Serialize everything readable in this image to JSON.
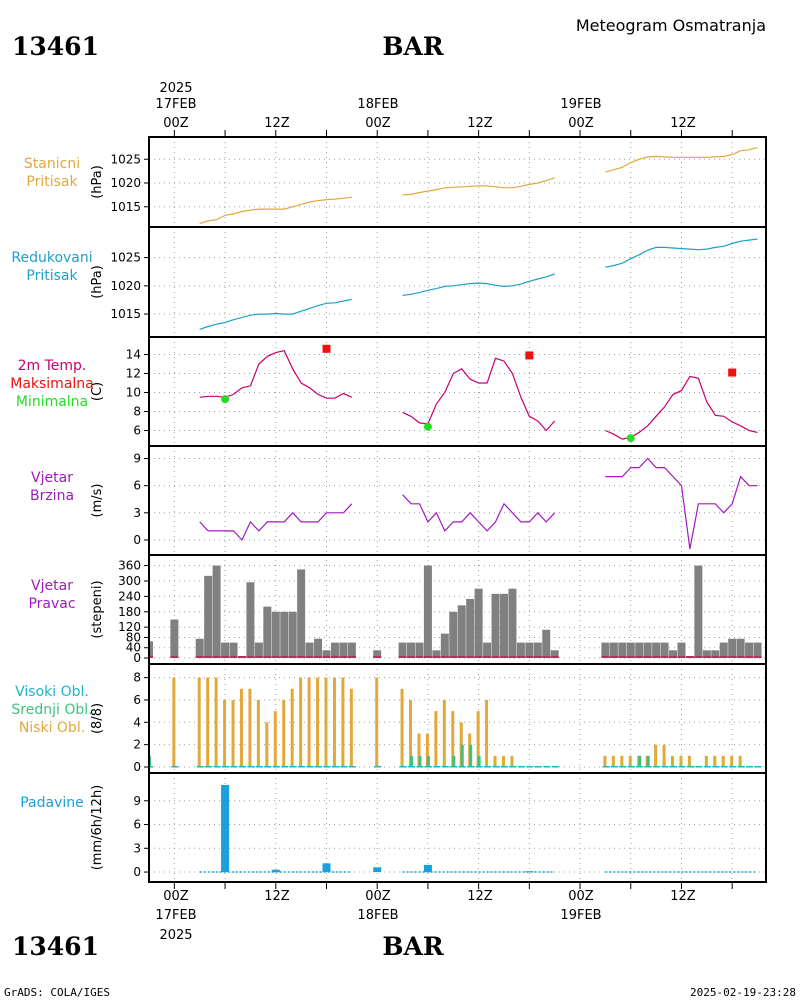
{
  "header": {
    "station_id": "13461",
    "station_name": "BAR",
    "title": "Meteogram Osmatranja"
  },
  "footer": {
    "station_id": "13461",
    "station_name": "BAR",
    "credit": "GrADS: COLA/IGES",
    "timestamp": "2025-02-19-23:28"
  },
  "time_axis": {
    "year": "2025",
    "day_labels": [
      "17FEB",
      "18FEB",
      "19FEB"
    ],
    "hour_labels": [
      "00Z",
      "12Z",
      "00Z",
      "12Z",
      "00Z",
      "12Z"
    ],
    "range_hours": [
      -3,
      70
    ],
    "grid_hours": [
      0,
      6,
      12,
      18,
      24,
      30,
      36,
      42,
      48,
      54,
      60,
      66
    ]
  },
  "colors": {
    "station_pressure": "#e2a83c",
    "reduced_pressure": "#1fa0c8",
    "temperature": "#c8006e",
    "tmax": "#ee1111",
    "tmin": "#22dd22",
    "wind_speed": "#a01bbf",
    "wind_dir": "#808080",
    "wind_dir_base": "#b03060",
    "high_cloud": "#1fb5c8",
    "mid_cloud": "#40c080",
    "low_cloud": "#e2a83c",
    "precip": "#1aa0dc",
    "grid": "#a0a0a0"
  },
  "chart_data": [
    {
      "type": "line",
      "panel": "station_pressure",
      "label_lines": [
        "Stanicni",
        "Pritisak"
      ],
      "ylabel": "(hPa)",
      "ylim": [
        1012,
        1028
      ],
      "yticks": [
        1015,
        1020,
        1025
      ],
      "series": [
        {
          "x": [
            3,
            4,
            5,
            6,
            7,
            8,
            9,
            10,
            11,
            12,
            13,
            14,
            15,
            16,
            17,
            18,
            19,
            20,
            21
          ],
          "values": [
            1011.5,
            1012,
            1012.3,
            1013.2,
            1013.5,
            1014,
            1014.3,
            1014.5,
            1014.5,
            1014.5,
            1014.5,
            1015,
            1015.5,
            1016,
            1016.3,
            1016.5,
            1016.6,
            1016.8,
            1017
          ]
        },
        {
          "x": [
            27,
            28,
            29,
            30,
            31,
            32,
            33,
            34,
            35,
            36,
            37,
            38,
            39,
            40,
            41,
            42,
            43,
            44,
            45
          ],
          "values": [
            1017.5,
            1017.6,
            1018,
            1018.3,
            1018.6,
            1019,
            1019.1,
            1019.2,
            1019.3,
            1019.4,
            1019.4,
            1019.2,
            1019,
            1019,
            1019.3,
            1019.7,
            1020,
            1020.5,
            1021.1
          ]
        },
        {
          "x": [
            51,
            52,
            53,
            54,
            55,
            56,
            57,
            58,
            59,
            60,
            61,
            62,
            63,
            64,
            65,
            66,
            67,
            68,
            69
          ],
          "values": [
            1022.3,
            1022.8,
            1023.3,
            1024.3,
            1025,
            1025.5,
            1025.6,
            1025.5,
            1025.4,
            1025.4,
            1025.4,
            1025.4,
            1025.4,
            1025.5,
            1025.6,
            1026,
            1026.8,
            1027,
            1027.5
          ]
        }
      ]
    },
    {
      "type": "line",
      "panel": "reduced_pressure",
      "label_lines": [
        "Redukovani",
        "Pritisak"
      ],
      "ylabel": "(hPa)",
      "ylim": [
        1012,
        1029
      ],
      "yticks": [
        1015,
        1020,
        1025
      ],
      "series": [
        {
          "x": [
            3,
            4,
            5,
            6,
            7,
            8,
            9,
            10,
            11,
            12,
            13,
            14,
            15,
            16,
            17,
            18,
            19,
            20,
            21
          ],
          "values": [
            1012.3,
            1012.8,
            1013.2,
            1013.5,
            1014,
            1014.4,
            1014.8,
            1015,
            1015,
            1015.1,
            1015,
            1015,
            1015.5,
            1016,
            1016.5,
            1016.9,
            1017,
            1017.3,
            1017.6
          ]
        },
        {
          "x": [
            27,
            28,
            29,
            30,
            31,
            32,
            33,
            34,
            35,
            36,
            37,
            38,
            39,
            40,
            41,
            42,
            43,
            44,
            45
          ],
          "values": [
            1018.3,
            1018.5,
            1018.8,
            1019.2,
            1019.5,
            1019.9,
            1020,
            1020.2,
            1020.4,
            1020.5,
            1020.4,
            1020.1,
            1019.9,
            1020,
            1020.3,
            1020.8,
            1021.2,
            1021.6,
            1022.1
          ]
        },
        {
          "x": [
            51,
            52,
            53,
            54,
            55,
            56,
            57,
            58,
            59,
            60,
            61,
            62,
            63,
            64,
            65,
            66,
            67,
            68,
            69
          ],
          "values": [
            1023.3,
            1023.6,
            1024,
            1024.8,
            1025.5,
            1026.3,
            1026.8,
            1026.8,
            1026.7,
            1026.6,
            1026.5,
            1026.4,
            1026.5,
            1026.8,
            1027,
            1027.5,
            1027.9,
            1028.1,
            1028.3
          ]
        }
      ]
    },
    {
      "type": "line",
      "panel": "temperature",
      "label_lines": [
        "2m Temp.",
        "Maksimalna",
        "Minimalna"
      ],
      "ylabel": "(C)",
      "ylim": [
        5,
        15
      ],
      "yticks": [
        6,
        8,
        10,
        12,
        14
      ],
      "series": [
        {
          "name": "2m Temp.",
          "x": [
            3,
            4,
            5,
            6,
            7,
            8,
            9,
            10,
            11,
            12,
            13,
            14,
            15,
            16,
            17,
            18,
            19,
            20,
            21
          ],
          "values": [
            9.5,
            9.6,
            9.6,
            9.5,
            9.8,
            10.5,
            10.7,
            13,
            13.8,
            14.2,
            14.4,
            12.5,
            11,
            10.5,
            9.8,
            9.4,
            9.4,
            9.9,
            9.5
          ]
        },
        {
          "name": "2m Temp.",
          "x": [
            27,
            28,
            29,
            30,
            31,
            32,
            33,
            34,
            35,
            36,
            37,
            38,
            39,
            40,
            41,
            42,
            43,
            44,
            45
          ],
          "values": [
            7.9,
            7.5,
            6.8,
            6.7,
            8.8,
            10,
            12,
            12.5,
            11.4,
            11,
            11,
            13.6,
            13.3,
            12,
            9.5,
            7.5,
            7,
            6,
            7
          ]
        },
        {
          "name": "2m Temp.",
          "x": [
            51,
            52,
            53,
            54,
            55,
            56,
            57,
            58,
            59,
            60,
            61,
            62,
            63,
            64,
            65,
            66,
            67,
            68,
            69
          ],
          "values": [
            6,
            5.6,
            5.1,
            5.3,
            5.8,
            6.5,
            7.5,
            8.5,
            9.8,
            10.2,
            11.7,
            11.5,
            9,
            7.6,
            7.5,
            6.9,
            6.5,
            6,
            5.8
          ]
        },
        {
          "name": "Maksimalna",
          "x": [
            18,
            42,
            66
          ],
          "values": [
            14.6,
            13.9,
            12.1
          ]
        },
        {
          "name": "Minimalna",
          "x": [
            6,
            30,
            54
          ],
          "values": [
            9.3,
            6.4,
            5.2
          ]
        }
      ]
    },
    {
      "type": "line",
      "panel": "wind_speed",
      "label_lines": [
        "Vjetar",
        "Brzina"
      ],
      "ylabel": "(m/s)",
      "ylim": [
        -1,
        9.5
      ],
      "yticks": [
        0,
        3,
        6,
        9
      ],
      "series": [
        {
          "x": [
            3,
            4,
            5,
            6,
            7,
            8,
            9,
            10,
            11,
            12,
            13,
            14,
            15,
            16,
            17,
            18,
            19,
            20,
            21
          ],
          "values": [
            2,
            1,
            1,
            1,
            1,
            0,
            2,
            1,
            2,
            2,
            2,
            3,
            2,
            2,
            2,
            3,
            3,
            3,
            4
          ]
        },
        {
          "x": [
            27,
            28,
            29,
            30,
            31,
            32,
            33,
            34,
            35,
            36,
            37,
            38,
            39,
            40,
            41,
            42,
            43,
            44,
            45
          ],
          "values": [
            5,
            4,
            4,
            2,
            3,
            1,
            2,
            2,
            3,
            2,
            1,
            2,
            4,
            3,
            2,
            2,
            3,
            2,
            3
          ]
        },
        {
          "x": [
            51,
            52,
            53,
            54,
            55,
            56,
            57,
            58,
            59,
            60,
            61,
            62,
            63,
            64,
            65,
            66,
            67,
            68,
            69
          ],
          "values": [
            7,
            7,
            7,
            8,
            8,
            9,
            8,
            8,
            7,
            6,
            -1,
            4,
            4,
            4,
            3,
            4,
            7,
            6,
            6
          ]
        }
      ]
    },
    {
      "type": "bar",
      "panel": "wind_direction",
      "label_lines": [
        "Vjetar",
        "Pravac"
      ],
      "ylabel": "(stepeni)",
      "ylim": [
        0,
        370
      ],
      "yticks": [
        0,
        40,
        80,
        120,
        180,
        240,
        300,
        360
      ],
      "ytick_labels": [
        "0",
        "40",
        "80",
        "120",
        "180",
        "240",
        "300",
        "360"
      ],
      "x": [
        -3,
        0,
        3,
        4,
        5,
        6,
        7,
        8,
        9,
        10,
        11,
        12,
        13,
        14,
        15,
        16,
        17,
        18,
        19,
        20,
        21,
        24,
        27,
        28,
        29,
        30,
        31,
        32,
        33,
        34,
        35,
        36,
        37,
        38,
        39,
        40,
        41,
        42,
        43,
        44,
        45,
        51,
        52,
        53,
        54,
        55,
        56,
        57,
        58,
        59,
        60,
        61,
        62,
        63,
        64,
        65,
        66,
        67,
        68,
        69
      ],
      "values": [
        65,
        150,
        75,
        320,
        360,
        60,
        60,
        0,
        295,
        60,
        200,
        180,
        180,
        180,
        345,
        60,
        75,
        30,
        60,
        60,
        60,
        30,
        60,
        60,
        60,
        360,
        30,
        95,
        180,
        205,
        230,
        270,
        60,
        250,
        250,
        270,
        60,
        60,
        60,
        110,
        30,
        60,
        60,
        60,
        60,
        60,
        60,
        60,
        60,
        30,
        60,
        0,
        360,
        30,
        30,
        60,
        75,
        75,
        60,
        60
      ]
    },
    {
      "type": "bar",
      "panel": "clouds",
      "label_lines": [
        "Visoki Obl.",
        "Srednji Obl.",
        "Niski Obl."
      ],
      "ylabel": "(8/8)",
      "ylim": [
        0,
        8.5
      ],
      "yticks": [
        0,
        2,
        4,
        6,
        8
      ],
      "x": [
        -3,
        0,
        3,
        4,
        5,
        6,
        7,
        8,
        9,
        10,
        11,
        12,
        13,
        14,
        15,
        16,
        17,
        18,
        19,
        20,
        21,
        24,
        27,
        28,
        29,
        30,
        31,
        32,
        33,
        34,
        35,
        36,
        37,
        38,
        39,
        40,
        41,
        42,
        43,
        44,
        45,
        51,
        52,
        53,
        54,
        55,
        56,
        57,
        58,
        59,
        60,
        61,
        62,
        63,
        64,
        65,
        66,
        67,
        68,
        69
      ],
      "series": [
        {
          "name": "Niski Obl.",
          "values": [
            2,
            8,
            8,
            8,
            8,
            6,
            6,
            7,
            7,
            6,
            4,
            5,
            6,
            7,
            8,
            8,
            8,
            8,
            8,
            8,
            7,
            8,
            7,
            6,
            3,
            3,
            5,
            6,
            5,
            4,
            3,
            5,
            6,
            1,
            1,
            1,
            0,
            0,
            0,
            0,
            0,
            1,
            1,
            1,
            1,
            1,
            1,
            2,
            2,
            1,
            1,
            1,
            0,
            1,
            1,
            1,
            1,
            1,
            0,
            0
          ]
        },
        {
          "name": "Srednji Obl.",
          "values": [
            1,
            0,
            0,
            0,
            0,
            0,
            0,
            0,
            0,
            0,
            0,
            0,
            0,
            0,
            0,
            0,
            0,
            0,
            0,
            0,
            0,
            0,
            0,
            1,
            1,
            1,
            0,
            0,
            1,
            2,
            2,
            1,
            0,
            0,
            0,
            0,
            0,
            0,
            0,
            0,
            0,
            0,
            0,
            0,
            0,
            1,
            1,
            0,
            0,
            0,
            0,
            0,
            0,
            0,
            0,
            0,
            0,
            0,
            0,
            0
          ]
        },
        {
          "name": "Visoki Obl.",
          "values": [
            0,
            0,
            0,
            0,
            0,
            0,
            0,
            0,
            0,
            0,
            0,
            0,
            0,
            0,
            0,
            0,
            0,
            0,
            0,
            0,
            0,
            0,
            0,
            0,
            0,
            0,
            0,
            0,
            0,
            0,
            0,
            0,
            0,
            0,
            0,
            0,
            0,
            0,
            0,
            0,
            0,
            0,
            0,
            0,
            0,
            0,
            0,
            0,
            0,
            0,
            0,
            0,
            0,
            0,
            0,
            0,
            0,
            0,
            0,
            0
          ]
        }
      ]
    },
    {
      "type": "bar",
      "panel": "precipitation",
      "label_lines": [
        "Padavine"
      ],
      "ylabel": "(mm/6h/12h)",
      "ylim": [
        -0.5,
        11.5
      ],
      "yticks": [
        0,
        3,
        6,
        9
      ],
      "x": [
        6,
        12,
        18,
        24,
        30,
        42
      ],
      "values": [
        11,
        0.3,
        1.1,
        0.6,
        0.9,
        0.1
      ]
    }
  ]
}
